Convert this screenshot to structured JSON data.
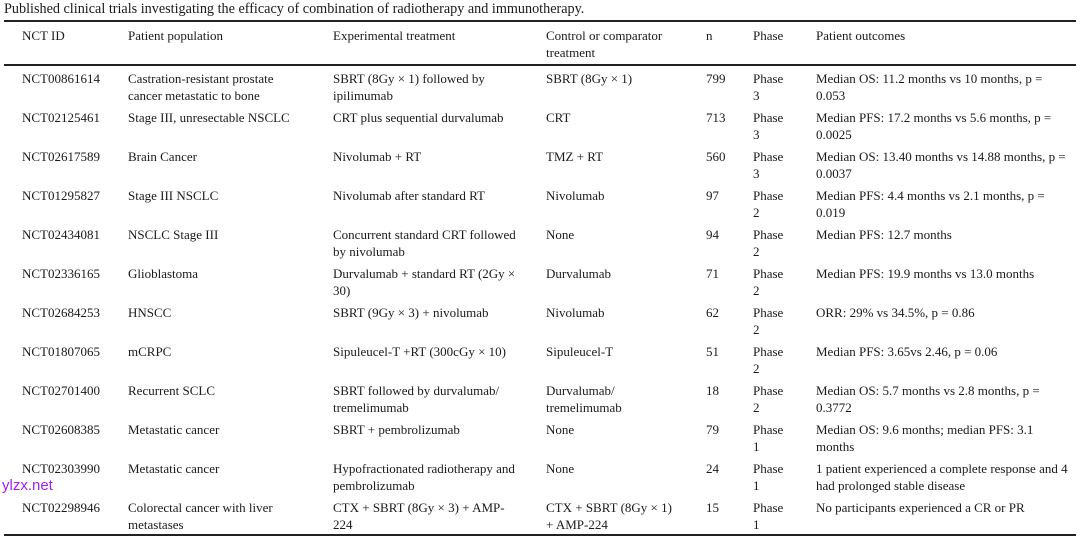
{
  "caption": "Published clinical trials investigating the efficacy of combination of radiotherapy and immunotherapy.",
  "headers": [
    "NCT ID",
    "Patient population",
    "Experimental treatment",
    "Control or comparator treatment",
    "n",
    "Phase",
    "Patient outcomes"
  ],
  "rows": [
    [
      "NCT00861614",
      "Castration-resistant prostate cancer metastatic to bone",
      "SBRT (8Gy × 1) followed by ipilimumab",
      "SBRT (8Gy × 1)",
      "799",
      "Phase 3",
      "Median OS: 11.2 months vs 10 months, p = 0.053"
    ],
    [
      "NCT02125461",
      "Stage III, unresectable NSCLC",
      "CRT plus sequential durvalumab",
      "CRT",
      "713",
      "Phase 3",
      "Median PFS: 17.2 months vs 5.6 months, p = 0.0025"
    ],
    [
      "NCT02617589",
      "Brain Cancer",
      "Nivolumab + RT",
      "TMZ + RT",
      "560",
      "Phase 3",
      "Median OS: 13.40 months vs 14.88 months, p = 0.0037"
    ],
    [
      "NCT01295827",
      "Stage III NSCLC",
      "Nivolumab after standard RT",
      "Nivolumab",
      "97",
      "Phase 2",
      "Median PFS: 4.4 months vs 2.1 months, p = 0.019"
    ],
    [
      "NCT02434081",
      "NSCLC Stage III",
      "Concurrent standard CRT followed by nivolumab",
      "None",
      "94",
      "Phase 2",
      "Median PFS: 12.7 months"
    ],
    [
      "NCT02336165",
      "Glioblastoma",
      "Durvalumab + standard RT (2Gy × 30)",
      "Durvalumab",
      "71",
      "Phase 2",
      "Median PFS: 19.9 months vs 13.0 months"
    ],
    [
      "NCT02684253",
      "HNSCC",
      "SBRT (9Gy × 3) + nivolumab",
      "Nivolumab",
      "62",
      "Phase 2",
      "ORR: 29% vs 34.5%, p = 0.86"
    ],
    [
      "NCT01807065",
      "mCRPC",
      "Sipuleucel-T +RT (300cGy × 10)",
      "Sipuleucel-T",
      "51",
      "Phase 2",
      "Median PFS: 3.65vs 2.46, p = 0.06"
    ],
    [
      "NCT02701400",
      "Recurrent SCLC",
      "SBRT followed by durvalumab/ tremelimumab",
      "Durvalumab/ tremelimumab",
      "18",
      "Phase 2",
      "Median OS: 5.7 months vs 2.8 months, p = 0.3772"
    ],
    [
      "NCT02608385",
      "Metastatic cancer",
      "SBRT + pembrolizumab",
      "None",
      "79",
      "Phase 1",
      "Median OS: 9.6 months; median PFS: 3.1 months"
    ],
    [
      "NCT02303990",
      "Metastatic cancer",
      "Hypofractionated radiotherapy and pembrolizumab",
      "None",
      "24",
      "Phase 1",
      "1 patient experienced a complete response and 4 had prolonged stable disease"
    ],
    [
      "NCT02298946",
      "Colorectal cancer with liver metastases",
      "CTX + SBRT (8Gy × 3) + AMP-224",
      "CTX + SBRT (8Gy × 1) + AMP-224",
      "15",
      "Phase 1",
      "No participants experienced a CR or PR"
    ]
  ],
  "watermark": "ylzx.net"
}
